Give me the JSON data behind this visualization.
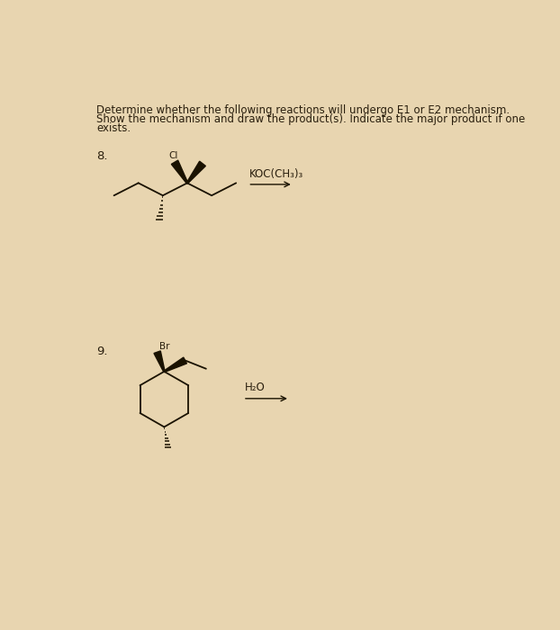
{
  "bg_color": "#e8d5b0",
  "text_color": "#2a1f0e",
  "title_lines": [
    "Determine whether the following reactions will undergo E1 or E2 mechanism.",
    "Show the mechanism and draw the product(s). Indicate the major product if one",
    "exists."
  ],
  "reaction8_label": "8.",
  "reaction9_label": "9.",
  "reagent8": "KOC(CH₃)₃",
  "reagent9": "H₂O",
  "font_size_title": 8.5,
  "font_size_labels": 9.5,
  "font_size_reagents": 8.5
}
